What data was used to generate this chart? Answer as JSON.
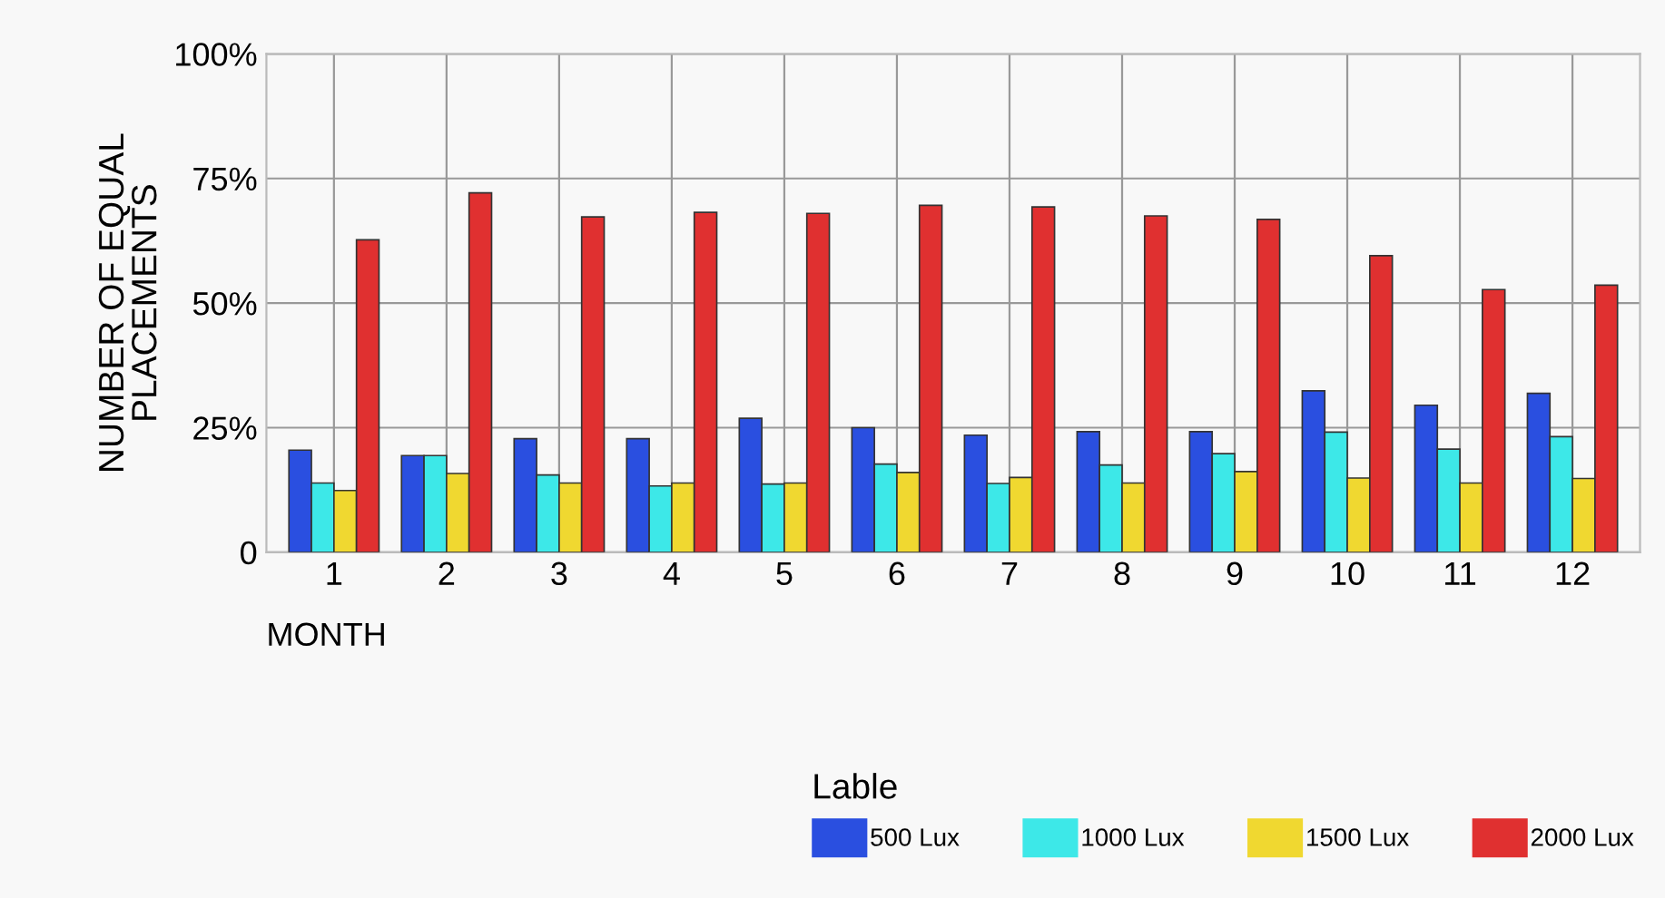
{
  "chart_data": {
    "type": "bar",
    "xlabel": "MONTH",
    "ylabel": "NUMBER OF EQUAL\nPLACEMENTS",
    "legend_title": "Lable",
    "categories": [
      "1",
      "2",
      "3",
      "4",
      "5",
      "6",
      "7",
      "8",
      "9",
      "10",
      "11",
      "12"
    ],
    "series": [
      {
        "name": "500 Lux",
        "color": "#2a4fe0",
        "values": [
          20.5,
          19.4,
          22.8,
          22.8,
          26.9,
          25.0,
          23.5,
          24.2,
          24.2,
          32.4,
          29.5,
          31.9
        ]
      },
      {
        "name": "1000 Lux",
        "color": "#3de8e8",
        "values": [
          13.9,
          19.4,
          15.5,
          13.3,
          13.7,
          17.7,
          13.8,
          17.5,
          19.8,
          24.1,
          20.7,
          23.2
        ]
      },
      {
        "name": "1500 Lux",
        "color": "#f0d830",
        "values": [
          12.4,
          15.8,
          13.9,
          13.9,
          13.9,
          16.0,
          15.0,
          13.9,
          16.2,
          14.9,
          13.9,
          14.8
        ]
      },
      {
        "name": "2000 Lux",
        "color": "#e03030",
        "values": [
          62.7,
          72.1,
          67.3,
          68.2,
          68.0,
          69.6,
          69.3,
          67.5,
          66.8,
          59.5,
          52.7,
          53.6
        ]
      }
    ],
    "ylim": [
      0,
      100
    ],
    "yticks": [
      0,
      {
        "value": 25,
        "label": "25%"
      },
      {
        "value": 50,
        "label": "50%"
      },
      {
        "value": 75,
        "label": "75%"
      },
      {
        "value": 100,
        "label": "100%"
      }
    ],
    "grid": true,
    "legend": "bottom right"
  }
}
